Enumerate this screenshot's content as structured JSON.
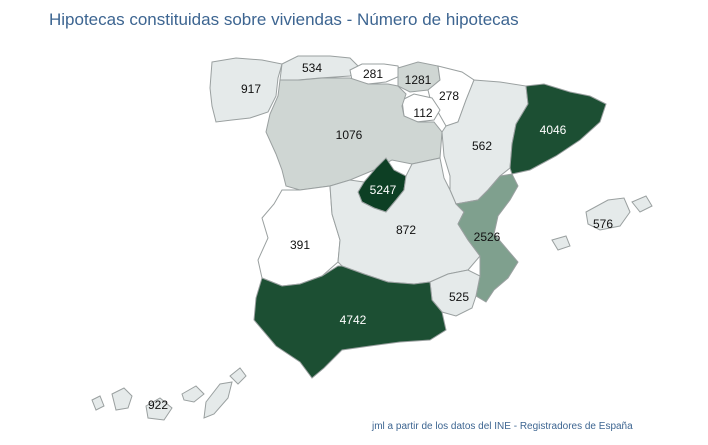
{
  "title": "Hipotecas constituidas sobre viviendas - Número de hipotecas",
  "credit": "jml a partir de los datos del INE - Registradores de España",
  "colors": {
    "text": "#3d6591",
    "scale": [
      "#ffffff",
      "#e5eaea",
      "#cfd6d3",
      "#7fa08e",
      "#3a6e57",
      "#1c4f33",
      "#0d3f24"
    ]
  },
  "regions": [
    {
      "key": "galicia",
      "value": 917,
      "label": "917"
    },
    {
      "key": "asturias",
      "value": 534,
      "label": "534"
    },
    {
      "key": "cantabria",
      "value": 281,
      "label": "281"
    },
    {
      "key": "pais_vasco",
      "value": 1281,
      "label": "1281"
    },
    {
      "key": "navarra",
      "value": 278,
      "label": "278"
    },
    {
      "key": "la_rioja",
      "value": 112,
      "label": "112"
    },
    {
      "key": "castilla_leon",
      "value": 1076,
      "label": "1076"
    },
    {
      "key": "aragon",
      "value": 562,
      "label": "562"
    },
    {
      "key": "cataluna",
      "value": 4046,
      "label": "4046"
    },
    {
      "key": "madrid",
      "value": 5247,
      "label": "5247"
    },
    {
      "key": "extremadura",
      "value": 391,
      "label": "391"
    },
    {
      "key": "castilla_la_mancha",
      "value": 872,
      "label": "872"
    },
    {
      "key": "valencia",
      "value": 2526,
      "label": "2526"
    },
    {
      "key": "baleares",
      "value": 576,
      "label": "576"
    },
    {
      "key": "murcia",
      "value": 525,
      "label": "525"
    },
    {
      "key": "andalucia",
      "value": 4742,
      "label": "4742"
    },
    {
      "key": "canarias",
      "value": 922,
      "label": "922"
    }
  ]
}
